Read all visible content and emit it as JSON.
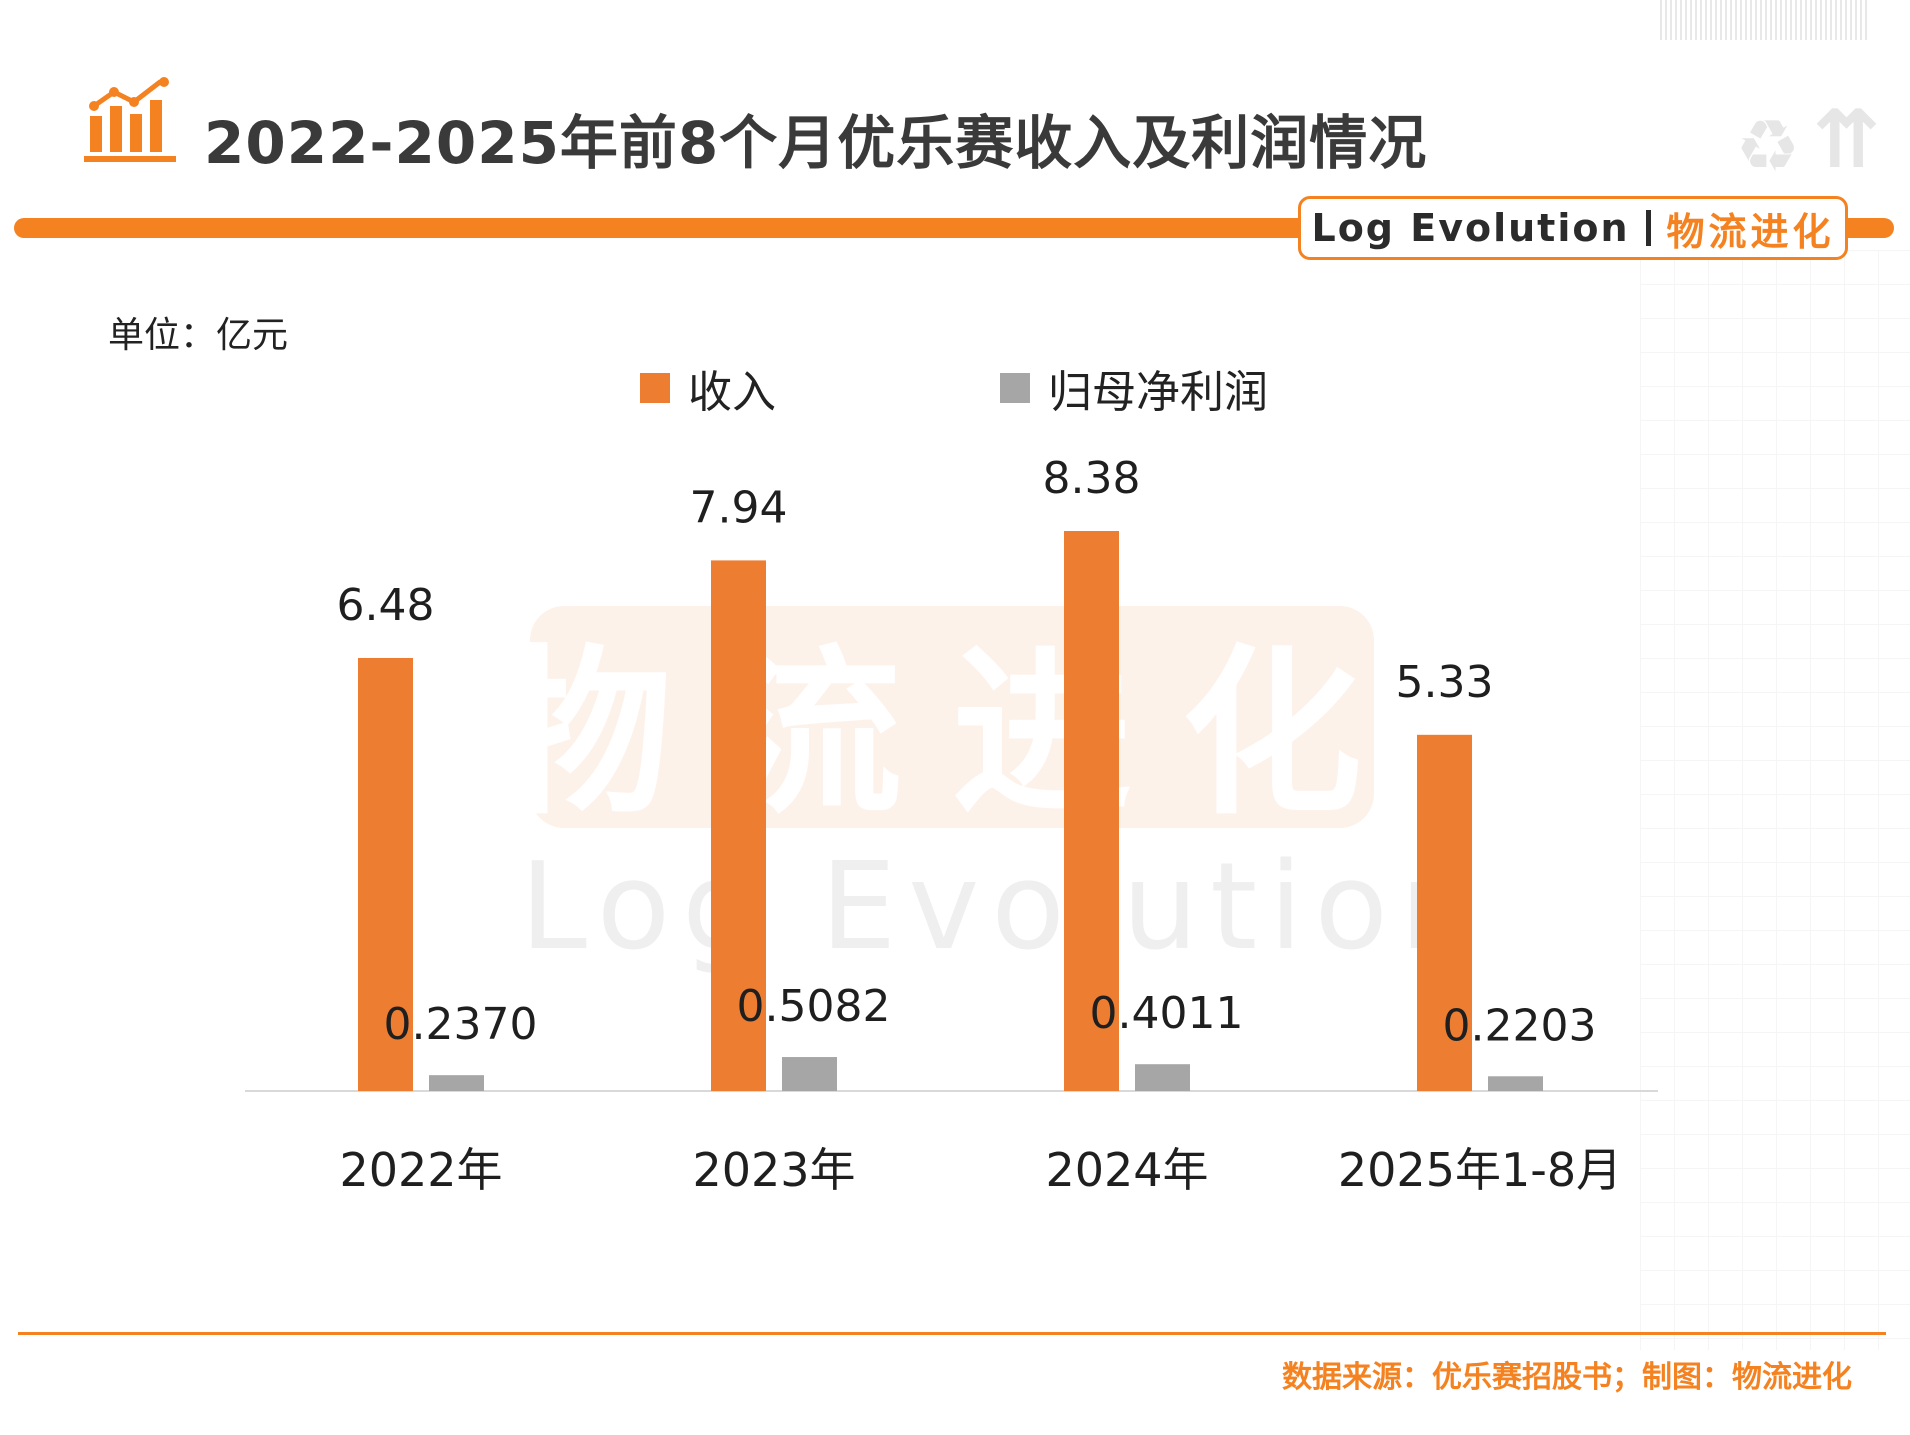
{
  "header": {
    "title": "2022-2025年前8个月优乐赛收入及利润情况",
    "brand_en": "Log Evolution",
    "brand_cn": "物流进化"
  },
  "unit_label": "单位：亿元",
  "watermark": {
    "cn": "物流进化",
    "en": "Log Evolution"
  },
  "footer": {
    "source": "数据来源：优乐赛招股书；制图：物流进化"
  },
  "colors": {
    "accent": "#f58220",
    "revenue": "#ed7d31",
    "profit": "#a6a6a6"
  },
  "chart_data": {
    "type": "bar",
    "title": "2022-2025年前8个月优乐赛收入及利润情况",
    "categories": [
      "2022年",
      "2023年",
      "2024年",
      "2025年1-8月"
    ],
    "series": [
      {
        "name": "收入",
        "values": [
          6.48,
          7.94,
          8.38,
          5.33
        ],
        "labels": [
          "6.48",
          "7.94",
          "8.38",
          "5.33"
        ]
      },
      {
        "name": "归母净利润",
        "values": [
          0.237,
          0.5082,
          0.4011,
          0.2203
        ],
        "labels": [
          "0.2370",
          "0.5082",
          "0.4011",
          "0.2203"
        ]
      }
    ],
    "ylabel": "亿元",
    "ylim": [
      0,
      8.38
    ],
    "grid": false,
    "legend": "top-center"
  }
}
